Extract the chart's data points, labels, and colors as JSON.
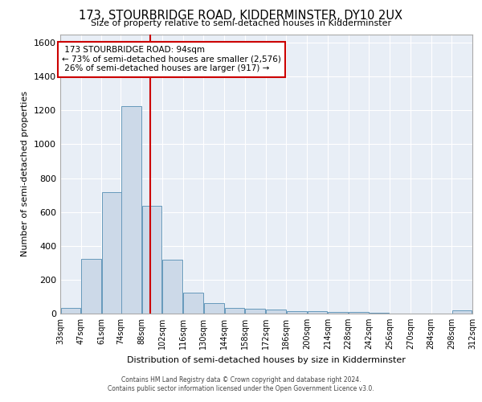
{
  "title": "173, STOURBRIDGE ROAD, KIDDERMINSTER, DY10 2UX",
  "subtitle": "Size of property relative to semi-detached houses in Kidderminster",
  "xlabel": "Distribution of semi-detached houses by size in Kidderminster",
  "ylabel": "Number of semi-detached properties",
  "bar_color": "#ccd9e8",
  "bar_edge_color": "#6699bb",
  "background_color": "#e8eef6",
  "grid_color": "#ffffff",
  "annotation_box_color": "#cc0000",
  "vline_color": "#cc0000",
  "property_size": 94,
  "property_label": "173 STOURBRIDGE ROAD: 94sqm",
  "pct_smaller": 73,
  "pct_smaller_count": "2,576",
  "pct_larger": 26,
  "pct_larger_count": "917",
  "bin_edges": [
    33,
    47,
    61,
    74,
    88,
    102,
    116,
    130,
    144,
    158,
    172,
    186,
    200,
    214,
    228,
    242,
    256,
    270,
    284,
    298,
    312
  ],
  "bin_labels": [
    "33sqm",
    "47sqm",
    "61sqm",
    "74sqm",
    "88sqm",
    "102sqm",
    "116sqm",
    "130sqm",
    "144sqm",
    "158sqm",
    "172sqm",
    "186sqm",
    "200sqm",
    "214sqm",
    "228sqm",
    "242sqm",
    "256sqm",
    "270sqm",
    "284sqm",
    "298sqm",
    "312sqm"
  ],
  "counts": [
    32,
    325,
    715,
    1225,
    635,
    320,
    125,
    62,
    35,
    30,
    25,
    15,
    12,
    10,
    8,
    3,
    0,
    0,
    0,
    18
  ],
  "ylim": [
    0,
    1650
  ],
  "yticks": [
    0,
    200,
    400,
    600,
    800,
    1000,
    1200,
    1400,
    1600
  ],
  "footer1": "Contains HM Land Registry data © Crown copyright and database right 2024.",
  "footer2": "Contains public sector information licensed under the Open Government Licence v3.0."
}
